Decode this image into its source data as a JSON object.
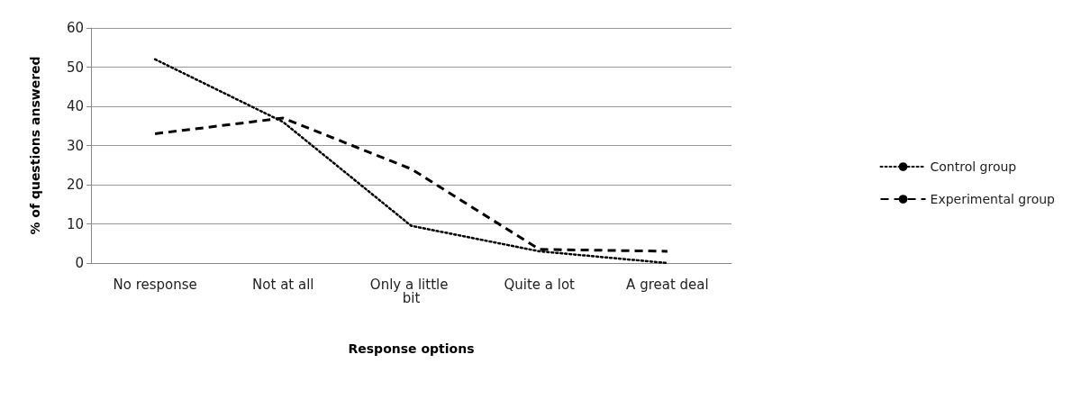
{
  "chart_data": {
    "type": "line",
    "xlabel": "Response options",
    "ylabel": "% of questions answered",
    "categories": [
      "No response",
      "Not at all",
      "Only a little bit",
      "Quite a lot",
      "A great deal"
    ],
    "series": [
      {
        "name": "Control group",
        "color": "#000000",
        "line_style": "dotted",
        "values": [
          52,
          36,
          9.5,
          3,
          0
        ]
      },
      {
        "name": "Experimental group",
        "color": "#000000",
        "line_style": "dashed",
        "values": [
          33,
          37,
          24,
          3.5,
          3
        ]
      }
    ],
    "ylim": [
      0,
      60
    ],
    "yticks": [
      0,
      10,
      20,
      30,
      40,
      50,
      60
    ],
    "grid": "y",
    "legend": "right",
    "marker": "none"
  }
}
